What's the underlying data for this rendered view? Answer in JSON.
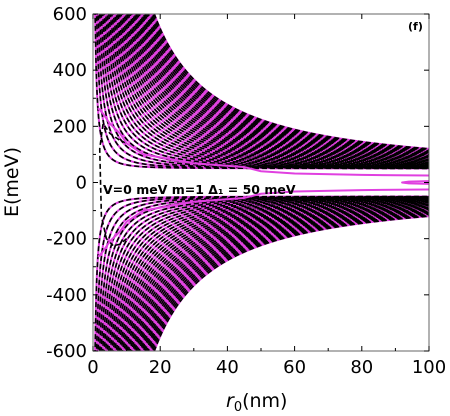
{
  "chart_data": {
    "type": "line",
    "panel_label": "(f)",
    "annotation": "V=0 meV  m=1  Δ₁ = 50 meV",
    "xlabel": {
      "sym": "r",
      "sub": "0",
      "unit": "(nm)"
    },
    "ylabel": "E(meV)",
    "xlim": [
      0,
      100
    ],
    "ylim": [
      -600,
      600
    ],
    "x_ticks": [
      0,
      20,
      40,
      60,
      80,
      100
    ],
    "y_ticks": [
      -600,
      -400,
      -200,
      0,
      200,
      400,
      600
    ],
    "x_tick_labels": [
      "0",
      "20",
      "40",
      "60",
      "80",
      "100"
    ],
    "y_tick_labels": [
      "-600",
      "-400",
      "-200",
      "0",
      "200",
      "400",
      "600"
    ],
    "grid": false,
    "colors": {
      "solid": "#e040e0",
      "dashed": "#000000"
    },
    "series": [
      {
        "style": "solid",
        "sign": 1,
        "k": [
          1.4,
          2.4,
          3.4,
          4.4,
          5.4,
          6.4,
          7.4,
          8.4,
          9.4,
          10.4,
          11.4,
          12.4,
          13.4,
          14.4,
          15.4,
          16.4,
          17.4,
          18.4,
          19.4,
          20.4,
          21.4,
          22.4,
          23.4,
          24.4,
          25.4,
          26.4,
          27.4,
          28.4,
          29.4,
          30.4,
          31.4,
          32.4,
          33.4,
          34.4,
          35.4,
          36.4,
          37.4,
          38.4,
          39.4,
          40.4
        ]
      },
      {
        "style": "solid",
        "sign": -1,
        "k": [
          1.4,
          2.4,
          3.4,
          4.4,
          5.4,
          6.4,
          7.4,
          8.4,
          9.4,
          10.4,
          11.4,
          12.4,
          13.4,
          14.4,
          15.4,
          16.4,
          17.4,
          18.4,
          19.4,
          20.4,
          21.4,
          22.4,
          23.4,
          24.4,
          25.4,
          26.4,
          27.4,
          28.4,
          29.4,
          30.4,
          31.4,
          32.4,
          33.4,
          34.4,
          35.4,
          36.4,
          37.4,
          38.4,
          39.4,
          40.4
        ]
      },
      {
        "style": "dashed",
        "sign": 1,
        "k": [
          1.4,
          2.4,
          3.4,
          4.4,
          5.4,
          6.4,
          7.4,
          8.4,
          9.4,
          10.4,
          11.4,
          12.4,
          13.4,
          14.4,
          15.4,
          16.4,
          17.4,
          18.4,
          19.4,
          20.4,
          21.4,
          22.4,
          23.4,
          24.4,
          25.4,
          26.4,
          27.4,
          28.4,
          29.4,
          30.4,
          31.4,
          32.4,
          33.4,
          34.4,
          35.4,
          36.4,
          37.4,
          38.4,
          39.4,
          40.4
        ]
      },
      {
        "style": "dashed",
        "sign": -1,
        "k": [
          1.4,
          2.4,
          3.4,
          4.4,
          5.4,
          6.4,
          7.4,
          8.4,
          9.4,
          10.4,
          11.4,
          12.4,
          13.4,
          14.4,
          15.4,
          16.4,
          17.4,
          18.4,
          19.4,
          20.4,
          21.4,
          22.4,
          23.4,
          24.4,
          25.4,
          26.4,
          27.4,
          28.4,
          29.4,
          30.4,
          31.4,
          32.4,
          33.4,
          34.4,
          35.4,
          36.4,
          37.4,
          38.4,
          39.4,
          40.4
        ]
      }
    ],
    "low_branches": [
      {
        "style": "dashed",
        "x": [
          10,
          8,
          5,
          3,
          2,
          2.5,
          4,
          6,
          8,
          10
        ],
        "y": [
          140,
          150,
          175,
          210,
          120,
          -120,
          -200,
          -225,
          -220,
          -200
        ]
      },
      {
        "style": "solid",
        "x": [
          100,
          80,
          60,
          50,
          45,
          30,
          15,
          10,
          8,
          5,
          3,
          1.5
        ],
        "y": [
          25,
          27,
          32,
          40,
          55,
          68,
          100,
          140,
          175,
          210,
          245,
          265
        ]
      },
      {
        "style": "solid",
        "x": [
          100,
          80,
          60,
          50,
          45,
          30,
          15,
          10,
          8,
          5,
          3,
          1.5
        ],
        "y": [
          -25,
          -27,
          -32,
          -40,
          -55,
          -68,
          -100,
          -140,
          -175,
          -210,
          -245,
          -265
        ]
      },
      {
        "style": "solid",
        "x": [
          100,
          94,
          92,
          94,
          100
        ],
        "y": [
          5,
          3,
          0,
          -3,
          -5
        ]
      }
    ]
  }
}
